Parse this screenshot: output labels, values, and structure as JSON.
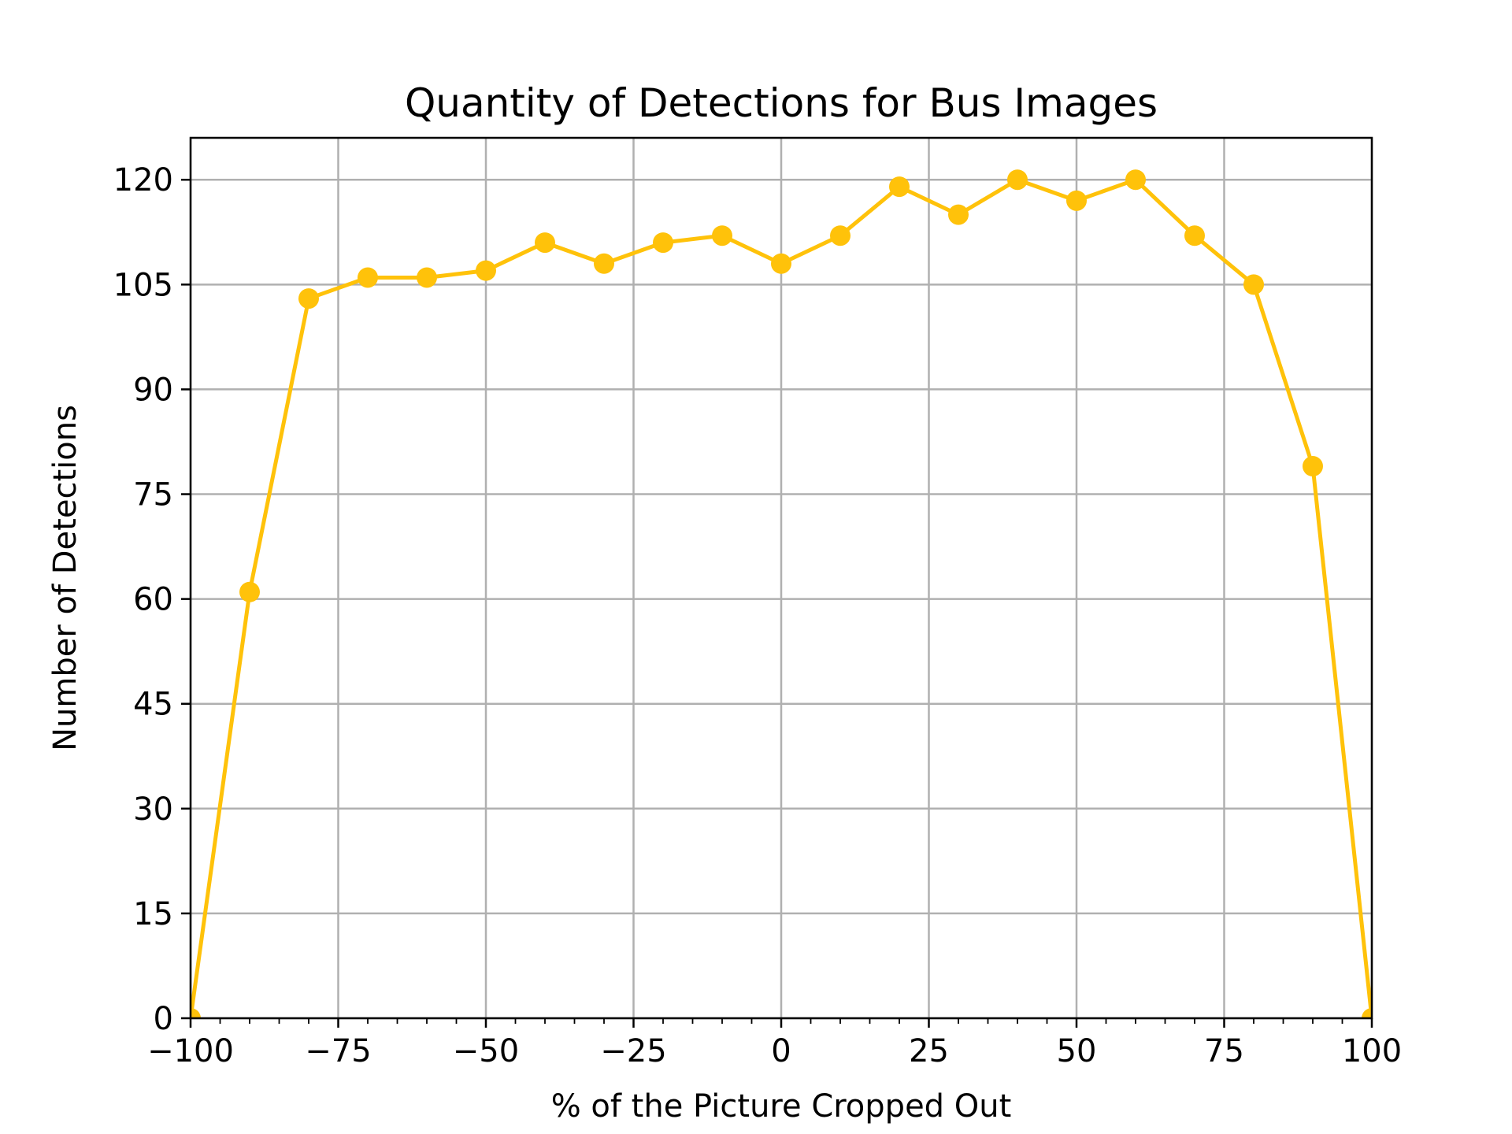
{
  "chart_data": {
    "type": "line",
    "title": "Quantity of Detections for Bus Images",
    "xlabel": "% of the Picture Cropped Out",
    "ylabel": "Number of Detections",
    "xlim": [
      -100,
      100
    ],
    "ylim": [
      0,
      126
    ],
    "xticks": [
      -100,
      -75,
      -50,
      -25,
      0,
      25,
      50,
      75,
      100
    ],
    "xtick_labels": [
      "−100",
      "−75",
      "−50",
      "−25",
      "0",
      "25",
      "50",
      "75",
      "100"
    ],
    "yticks": [
      0,
      15,
      30,
      45,
      60,
      75,
      90,
      105,
      120
    ],
    "ytick_labels": [
      "0",
      "15",
      "30",
      "45",
      "60",
      "75",
      "90",
      "105",
      "120"
    ],
    "x_minor_step": 5,
    "grid": true,
    "color": "#ffc20a",
    "x": [
      -100,
      -90,
      -80,
      -70,
      -60,
      -50,
      -40,
      -30,
      -20,
      -10,
      0,
      10,
      20,
      30,
      40,
      50,
      60,
      70,
      80,
      90,
      100
    ],
    "y": [
      0,
      61,
      103,
      106,
      106,
      107,
      111,
      108,
      111,
      112,
      108,
      112,
      119,
      115,
      120,
      117,
      120,
      112,
      105,
      79,
      0
    ]
  }
}
